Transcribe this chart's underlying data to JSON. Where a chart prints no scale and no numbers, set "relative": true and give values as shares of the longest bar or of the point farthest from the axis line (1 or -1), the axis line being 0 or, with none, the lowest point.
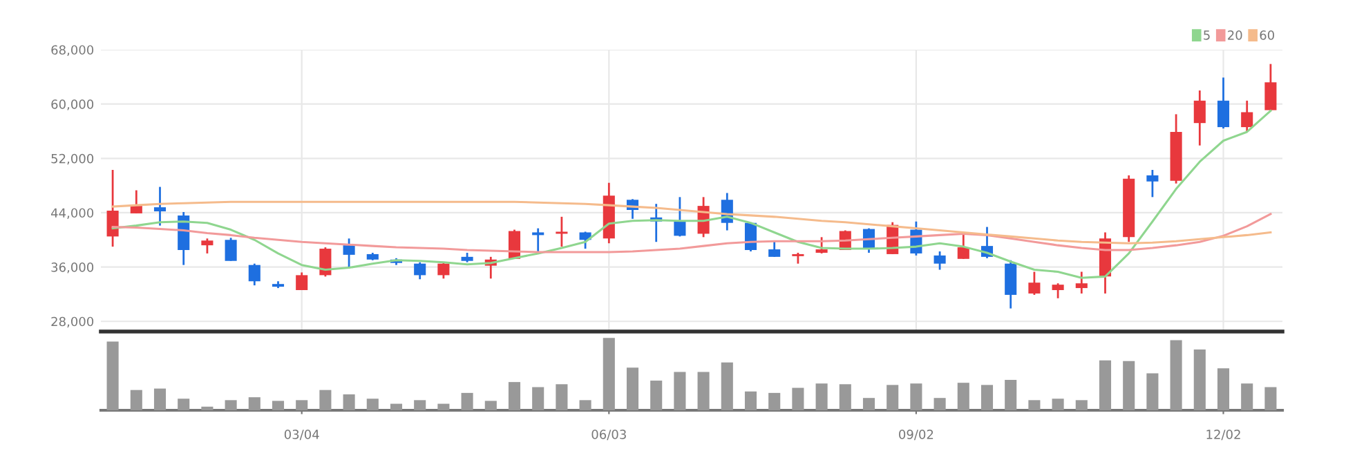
{
  "chart_data": [
    {
      "type": "candlestick",
      "ohlc": [
        [
          40500,
          50300,
          39000,
          44300
        ],
        [
          43900,
          47300,
          43900,
          45000
        ],
        [
          44800,
          47800,
          42100,
          44200
        ],
        [
          43600,
          44100,
          36300,
          38500
        ],
        [
          39200,
          40200,
          38000,
          39900
        ],
        [
          40000,
          40300,
          36900,
          36900
        ],
        [
          36300,
          36500,
          33300,
          33900
        ],
        [
          33500,
          33900,
          32900,
          33100
        ],
        [
          32600,
          35200,
          32600,
          34800
        ],
        [
          34800,
          38900,
          34600,
          38700
        ],
        [
          39200,
          40200,
          35800,
          37800
        ],
        [
          37900,
          38100,
          37000,
          37100
        ],
        [
          37100,
          37300,
          36300,
          36600
        ],
        [
          36500,
          36700,
          34200,
          34800
        ],
        [
          34800,
          36700,
          34300,
          36500
        ],
        [
          37500,
          38100,
          36700,
          36900
        ],
        [
          36200,
          37500,
          34300,
          37100
        ],
        [
          37200,
          41500,
          37200,
          41300
        ],
        [
          41100,
          41700,
          38000,
          40700
        ],
        [
          40900,
          43400,
          39000,
          41200
        ],
        [
          41100,
          41200,
          38700,
          40000
        ],
        [
          40200,
          48400,
          39500,
          46500
        ],
        [
          45900,
          46000,
          43100,
          44400
        ],
        [
          43300,
          45300,
          39700,
          42700
        ],
        [
          42700,
          46300,
          40500,
          40600
        ],
        [
          40900,
          46300,
          40400,
          45000
        ],
        [
          45900,
          46900,
          41400,
          42500
        ],
        [
          42500,
          42500,
          38300,
          38500
        ],
        [
          38600,
          39800,
          37500,
          37500
        ],
        [
          37600,
          38100,
          36500,
          37900
        ],
        [
          38100,
          40400,
          38000,
          38600
        ],
        [
          38500,
          41400,
          38500,
          41300
        ],
        [
          41600,
          41700,
          38100,
          38800
        ],
        [
          37900,
          42600,
          37900,
          42200
        ],
        [
          41500,
          42700,
          37700,
          38000
        ],
        [
          37700,
          38300,
          35600,
          36500
        ],
        [
          37200,
          41100,
          37200,
          38900
        ],
        [
          39100,
          41900,
          37300,
          37500
        ],
        [
          36500,
          37000,
          29900,
          31900
        ],
        [
          32100,
          35300,
          31900,
          33700
        ],
        [
          32600,
          33600,
          31400,
          33400
        ],
        [
          32900,
          35300,
          32100,
          33600
        ],
        [
          34600,
          41100,
          32100,
          40200
        ],
        [
          40400,
          49500,
          39700,
          49000
        ],
        [
          49500,
          50300,
          46300,
          48600
        ],
        [
          48700,
          58500,
          48300,
          55900
        ],
        [
          57200,
          62000,
          53900,
          60500
        ],
        [
          60500,
          63900,
          56400,
          56600
        ],
        [
          56600,
          60500,
          55900,
          58800
        ],
        [
          59100,
          65900,
          59100,
          63200
        ]
      ],
      "colors": [
        "#e8383d",
        "#e8383d",
        "#1e6fe0",
        "#1e6fe0",
        "#e8383d",
        "#1e6fe0",
        "#1e6fe0",
        "#1e6fe0",
        "#e8383d",
        "#e8383d",
        "#1e6fe0",
        "#1e6fe0",
        "#1e6fe0",
        "#1e6fe0",
        "#e8383d",
        "#1e6fe0",
        "#e8383d",
        "#e8383d",
        "#1e6fe0",
        "#e8383d",
        "#1e6fe0",
        "#e8383d",
        "#1e6fe0",
        "#1e6fe0",
        "#1e6fe0",
        "#e8383d",
        "#1e6fe0",
        "#1e6fe0",
        "#1e6fe0",
        "#e8383d",
        "#e8383d",
        "#e8383d",
        "#1e6fe0",
        "#e8383d",
        "#1e6fe0",
        "#1e6fe0",
        "#e8383d",
        "#1e6fe0",
        "#1e6fe0",
        "#e8383d",
        "#e8383d",
        "#e8383d",
        "#e8383d",
        "#e8383d",
        "#1e6fe0",
        "#e8383d",
        "#e8383d",
        "#1e6fe0",
        "#e8383d",
        "#e8383d"
      ],
      "series": [
        {
          "type": "line",
          "name": "5",
          "color": "#8fd68f",
          "values": [
            41700,
            42100,
            42600,
            42700,
            42500,
            41500,
            40000,
            38000,
            36300,
            35600,
            35900,
            36500,
            37000,
            36900,
            36700,
            36400,
            36600,
            37300,
            38000,
            38800,
            39700,
            42400,
            42800,
            42900,
            42800,
            42800,
            43400,
            42500,
            41100,
            39700,
            38800,
            38700,
            38700,
            38800,
            39000,
            39500,
            39000,
            38100,
            36800,
            35600,
            35300,
            34400,
            34600,
            38000,
            42700,
            47500,
            51500,
            54600,
            55900,
            59000
          ]
        },
        {
          "type": "line",
          "name": "20",
          "color": "#f29a9a",
          "values": [
            41900,
            41800,
            41600,
            41400,
            41000,
            40700,
            40300,
            40000,
            39700,
            39500,
            39300,
            39100,
            38900,
            38800,
            38700,
            38500,
            38400,
            38300,
            38200,
            38200,
            38200,
            38200,
            38300,
            38500,
            38700,
            39100,
            39500,
            39700,
            39800,
            39800,
            39800,
            39900,
            40100,
            40300,
            40500,
            40700,
            40900,
            40700,
            40200,
            39700,
            39200,
            38800,
            38500,
            38500,
            38800,
            39200,
            39700,
            40600,
            42000,
            43800
          ]
        },
        {
          "type": "line",
          "name": "60",
          "color": "#f5bb8c",
          "values": [
            44900,
            45100,
            45300,
            45400,
            45500,
            45600,
            45600,
            45600,
            45600,
            45600,
            45600,
            45600,
            45600,
            45600,
            45600,
            45600,
            45600,
            45600,
            45500,
            45400,
            45300,
            45100,
            44900,
            44700,
            44400,
            44100,
            43800,
            43600,
            43400,
            43100,
            42800,
            42600,
            42300,
            42000,
            41700,
            41400,
            41100,
            40800,
            40500,
            40200,
            39900,
            39700,
            39600,
            39500,
            39600,
            39800,
            40100,
            40400,
            40700,
            41100
          ]
        }
      ],
      "ylim": [
        26500,
        68000
      ],
      "yticks": [
        {
          "value": 28000,
          "label": "28,000"
        },
        {
          "value": 36000,
          "label": "36,000"
        },
        {
          "value": 44000,
          "label": "44,000"
        },
        {
          "value": 52000,
          "label": "52,000"
        },
        {
          "value": 60000,
          "label": "60,000"
        },
        {
          "value": 68000,
          "label": "68,000"
        }
      ],
      "grid": true,
      "legend": "top right",
      "tick_labels": "y"
    },
    {
      "type": "bar",
      "relative": true,
      "color": "#999999",
      "tick_labels": "x",
      "categories": [
        null,
        null,
        null,
        null,
        null,
        null,
        null,
        null,
        "03/04",
        null,
        null,
        null,
        null,
        null,
        null,
        null,
        null,
        null,
        null,
        null,
        null,
        "06/03",
        null,
        null,
        null,
        null,
        null,
        null,
        null,
        null,
        null,
        null,
        null,
        null,
        "09/02",
        null,
        null,
        null,
        null,
        null,
        null,
        null,
        null,
        null,
        null,
        null,
        null,
        "12/02",
        null,
        null
      ],
      "values": [
        0.95,
        0.28,
        0.3,
        0.16,
        0.05,
        0.14,
        0.18,
        0.13,
        0.14,
        0.28,
        0.22,
        0.16,
        0.09,
        0.14,
        0.09,
        0.24,
        0.13,
        0.39,
        0.32,
        0.36,
        0.14,
        1,
        0.59,
        0.41,
        0.53,
        0.53,
        0.66,
        0.26,
        0.24,
        0.31,
        0.37,
        0.36,
        0.17,
        0.35,
        0.37,
        0.17,
        0.38,
        0.35,
        0.42,
        0.14,
        0.16,
        0.14,
        0.69,
        0.68,
        0.51,
        0.97,
        0.84,
        0.58,
        0.37,
        0.32
      ]
    }
  ]
}
